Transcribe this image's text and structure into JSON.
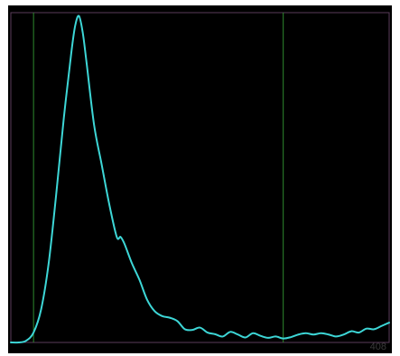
{
  "chart_data": {
    "type": "line",
    "title": "",
    "xlabel": "",
    "ylabel": "",
    "xlim": [
      0,
      100
    ],
    "ylim": [
      0,
      100
    ],
    "grid": false,
    "markers_x": [
      6,
      72
    ],
    "series": [
      {
        "values_x": [
          0,
          2,
          4,
          6,
          8,
          10,
          12,
          14,
          16,
          17,
          18,
          19,
          20,
          22,
          24,
          26,
          28,
          29,
          30,
          32,
          34,
          36,
          38,
          40,
          42,
          44,
          46,
          48,
          50,
          52,
          54,
          56,
          58,
          60,
          62,
          64,
          66,
          68,
          70,
          72,
          74,
          76,
          78,
          80,
          82,
          84,
          86,
          88,
          90,
          92,
          94,
          96,
          98,
          100
        ],
        "values_y": [
          0,
          0,
          0.5,
          3,
          10,
          24,
          45,
          68,
          88,
          96,
          99,
          94,
          85,
          66,
          54,
          42,
          32,
          32,
          30,
          24,
          19,
          13,
          9.5,
          8,
          7.5,
          6.5,
          4,
          3.8,
          4.5,
          3,
          2.5,
          1.8,
          3.2,
          2.4,
          1.5,
          2.8,
          2.0,
          1.4,
          1.8,
          1.2,
          1.6,
          2.4,
          2.8,
          2.4,
          2.8,
          2.4,
          1.8,
          2.4,
          3.4,
          3.0,
          4.2,
          4.0,
          5.0,
          6.0
        ]
      }
    ],
    "colors": {
      "line": "#3dd6d6",
      "marker": "#2f8a2f",
      "border": "#5a3d5a",
      "background": "#000000"
    }
  },
  "corner_label": "408"
}
